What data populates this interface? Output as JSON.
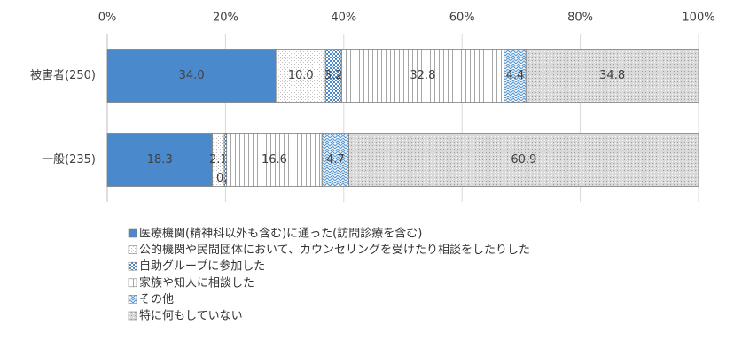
{
  "chart_data": {
    "type": "stacked-bar-100",
    "categories": [
      "被害者(250)",
      "一般(235)"
    ],
    "series": [
      {
        "name": "医療機関(精神科以外も含む)に通った(訪問診療を含む)",
        "color": "#4a89cc",
        "pattern": "solid",
        "values": [
          34.0,
          18.3
        ],
        "value_labels": [
          "34.0",
          "18.3"
        ]
      },
      {
        "name": "公的機関や民間団体において、カウンセリングを受けたり相談をしたりした",
        "color": "#bfbfbf",
        "pattern": "fine-dots",
        "values": [
          10.0,
          2.1
        ],
        "value_labels": [
          "10.0",
          "2.1"
        ]
      },
      {
        "name": "自助グループに参加した",
        "color": "#4a89cc",
        "pattern": "dots",
        "values": [
          3.2,
          0.4
        ]
      },
      {
        "name": "家族や知人に相談した",
        "color": "#a6a6a6",
        "pattern": "vlines",
        "values": [
          32.8,
          16.6
        ]
      },
      {
        "name": "その他",
        "color": "#5b9bd5",
        "pattern": "waves",
        "values": [
          4.4,
          4.7
        ]
      },
      {
        "name": "特に何もしていない",
        "color": "#9e9e9e",
        "pattern": "crosshatch",
        "values": [
          34.8,
          60.9
        ]
      }
    ],
    "xlim": [
      0,
      100
    ],
    "xticks": [
      {
        "value": 0,
        "label": "0%"
      },
      {
        "value": 20,
        "label": "20%"
      },
      {
        "value": 40,
        "label": "40%"
      },
      {
        "value": 60,
        "label": "60%"
      },
      {
        "value": 80,
        "label": "80%"
      },
      {
        "value": 100,
        "label": "100%"
      }
    ],
    "grid": true
  }
}
